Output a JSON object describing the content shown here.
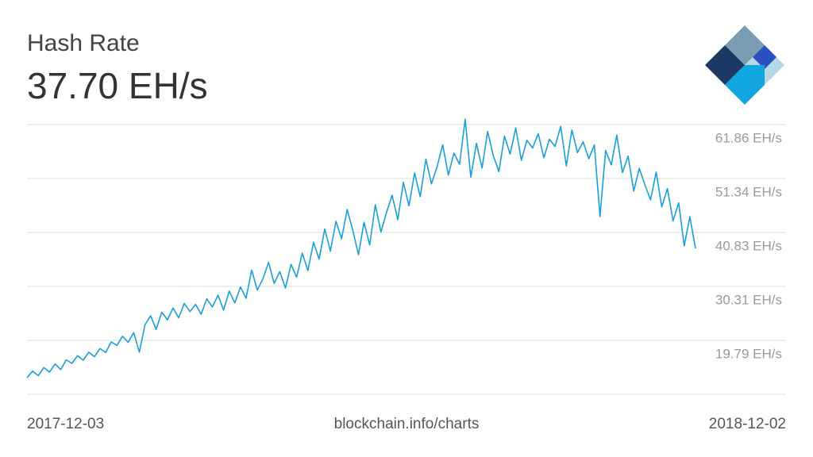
{
  "chart_data": {
    "type": "line",
    "title": "Hash Rate",
    "subtitle": "37.70 EH/s",
    "x_start": "2017-12-03",
    "x_end": "2018-12-02",
    "source": "blockchain.info/charts",
    "color": "#1a9fd6",
    "grid": true,
    "ylim": [
      9.27,
      61.86
    ],
    "yticks": [
      {
        "value": 19.79,
        "label": "19.79 EH/s"
      },
      {
        "value": 30.31,
        "label": "30.31 EH/s"
      },
      {
        "value": 40.83,
        "label": "40.83 EH/s"
      },
      {
        "value": 51.34,
        "label": "51.34 EH/s"
      },
      {
        "value": 61.86,
        "label": "61.86 EH/s"
      }
    ],
    "values": [
      12.5,
      13.8,
      12.9,
      14.5,
      13.6,
      15.2,
      14.1,
      16.0,
      15.3,
      16.8,
      15.9,
      17.5,
      16.6,
      18.2,
      17.4,
      19.5,
      18.8,
      20.6,
      19.4,
      21.3,
      17.5,
      22.8,
      24.6,
      21.9,
      25.3,
      23.8,
      26.1,
      24.2,
      27.0,
      25.4,
      26.8,
      24.9,
      27.9,
      26.3,
      28.6,
      25.7,
      29.4,
      27.1,
      30.2,
      28.0,
      33.5,
      29.6,
      31.8,
      35.0,
      30.9,
      33.2,
      30.0,
      34.6,
      32.1,
      36.8,
      33.4,
      38.9,
      35.6,
      41.5,
      37.2,
      43.0,
      39.6,
      45.3,
      41.2,
      36.5,
      42.8,
      38.4,
      46.2,
      40.9,
      44.7,
      48.1,
      43.3,
      50.6,
      46.0,
      52.4,
      47.8,
      55.1,
      50.3,
      53.6,
      57.9,
      52.0,
      56.3,
      54.1,
      62.9,
      51.6,
      58.2,
      53.4,
      60.5,
      55.8,
      52.7,
      59.6,
      56.1,
      61.2,
      54.9,
      58.8,
      57.3,
      60.1,
      55.4,
      59.0,
      57.6,
      61.5,
      53.8,
      60.8,
      56.4,
      58.5,
      55.2,
      57.9,
      43.9,
      56.8,
      54.0,
      59.8,
      52.5,
      55.7,
      48.9,
      53.3,
      50.1,
      47.2,
      52.6,
      45.8,
      49.4,
      43.1,
      46.6,
      38.2,
      43.9,
      37.7
    ]
  }
}
